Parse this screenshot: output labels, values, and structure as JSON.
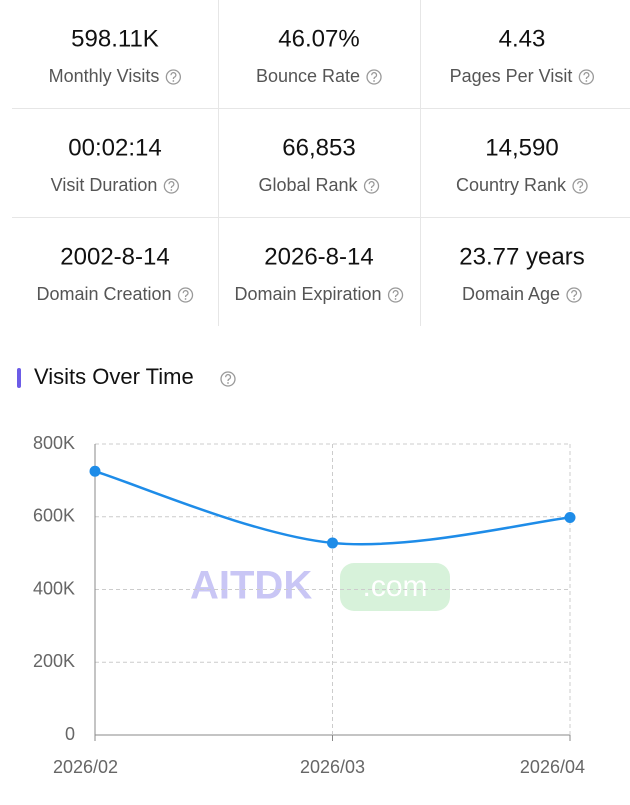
{
  "stats": [
    {
      "value": "598.11K",
      "label": "Monthly Visits"
    },
    {
      "value": "46.07%",
      "label": "Bounce Rate"
    },
    {
      "value": "4.43",
      "label": "Pages Per Visit"
    },
    {
      "value": "00:02:14",
      "label": "Visit Duration"
    },
    {
      "value": "66,853",
      "label": "Global Rank"
    },
    {
      "value": "14,590",
      "label": "Country Rank"
    },
    {
      "value": "2002-8-14",
      "label": "Domain Creation"
    },
    {
      "value": "2026-8-14",
      "label": "Domain Expiration"
    },
    {
      "value": "23.77 years",
      "label": "Domain Age"
    }
  ],
  "chart_data": {
    "type": "line",
    "title": "Visits Over Time",
    "categories": [
      "2026/02",
      "2026/03",
      "2026/04"
    ],
    "series": [
      {
        "name": "Visits",
        "color": "#1e8ce8",
        "values": [
          725000,
          528000,
          598000
        ]
      }
    ],
    "ylim": [
      0,
      800000
    ],
    "yticks": [
      0,
      {
        "value": 200000,
        "label": "200K"
      },
      {
        "value": 400000,
        "label": "400K"
      },
      {
        "value": 600000,
        "label": "600K"
      },
      {
        "value": 800000,
        "label": "800K"
      }
    ],
    "grid": true
  },
  "watermark": {
    "brand": "AITDK",
    "suffix": ".com"
  }
}
